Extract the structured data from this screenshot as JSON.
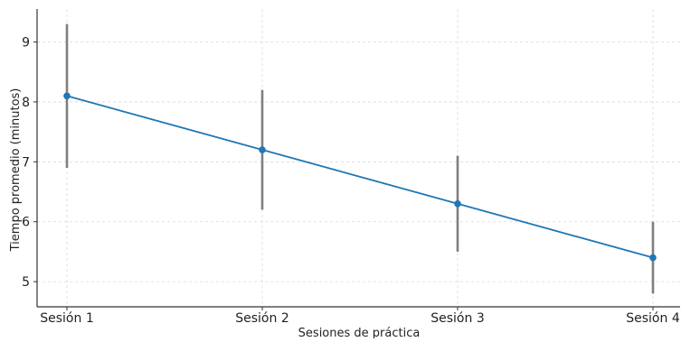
{
  "chart_data": {
    "type": "line",
    "title": "",
    "xlabel": "Sesiones de práctica",
    "ylabel": "Tiempo promedio (minutos)",
    "categories": [
      "Sesión 1",
      "Sesión 2",
      "Sesión 3",
      "Sesión 4"
    ],
    "series": [
      {
        "values": [
          8.1,
          7.2,
          6.3,
          5.4
        ],
        "error": [
          1.2,
          1.0,
          0.8,
          0.6
        ],
        "color": "#1f77b4"
      }
    ],
    "ylim": [
      4.58,
      9.55
    ],
    "yticks": [
      5,
      6,
      7,
      8,
      9
    ],
    "grid": true,
    "errorbar_color": "#7f7f7f"
  }
}
